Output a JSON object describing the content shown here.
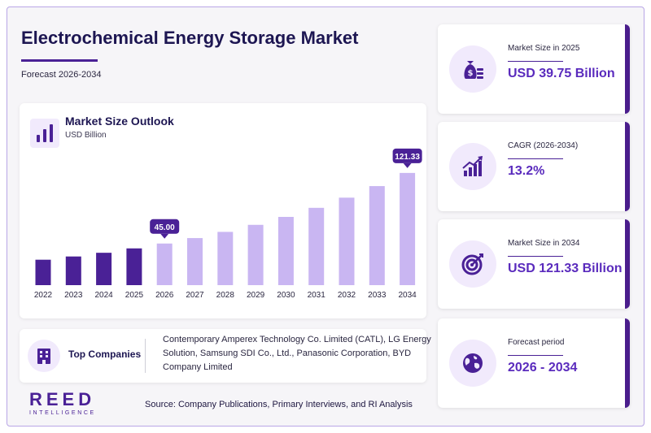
{
  "header": {
    "title": "Electrochemical Energy Storage Market",
    "subtitle": "Forecast 2026-2034"
  },
  "chart_card": {
    "title": "Market Size Outlook",
    "unit": "USD Billion"
  },
  "chart_data": {
    "type": "bar",
    "categories": [
      "2022",
      "2023",
      "2024",
      "2025",
      "2026",
      "2027",
      "2028",
      "2029",
      "2030",
      "2031",
      "2032",
      "2033",
      "2034"
    ],
    "values": [
      27.5,
      31.0,
      35.0,
      39.75,
      45.0,
      50.9,
      57.6,
      65.2,
      73.8,
      83.6,
      94.6,
      107.1,
      121.33
    ],
    "annotations": [
      {
        "category": "2026",
        "label": "45.00"
      },
      {
        "category": "2034",
        "label": "121.33"
      }
    ],
    "colors": {
      "historical": "#4a2196",
      "forecast": "#c9b6f2",
      "callout": "#4a2196"
    },
    "historical_through": "2025",
    "ylim": [
      0,
      130
    ],
    "grid": false
  },
  "companies": {
    "label": "Top Companies",
    "list": "Contemporary Amperex Technology Co. Limited (CATL), LG Energy Solution, Samsung SDI Co., Ltd., Panasonic Corporation, BYD Company Limited"
  },
  "logo": {
    "main": "REED",
    "sub": "INTELLIGENCE"
  },
  "source": "Source: Company Publications, Primary Interviews, and RI Analysis",
  "stats": [
    {
      "label": "Market Size in 2025",
      "value": "USD 39.75 Billion",
      "icon": "money-bag-icon"
    },
    {
      "label": "CAGR (2026-2034)",
      "value": "13.2%",
      "icon": "growth-chart-icon"
    },
    {
      "label": "Market Size in 2034",
      "value": "USD 121.33 Billion",
      "icon": "target-icon"
    },
    {
      "label": "Forecast period",
      "value": "2026 - 2034",
      "icon": "globe-icon"
    }
  ]
}
